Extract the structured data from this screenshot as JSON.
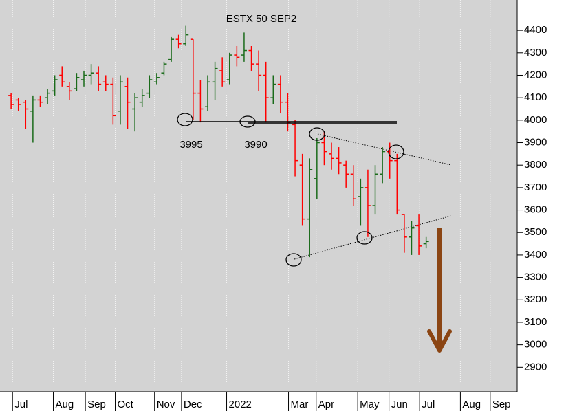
{
  "chart_data": {
    "type": "ohlc",
    "title": "ESTX 50 SEP2",
    "open": [
      4110,
      4090,
      4080,
      4040,
      4090,
      4100,
      4130,
      4200,
      4150,
      4140,
      4180,
      4200,
      4210,
      4170,
      4160,
      4040,
      4150,
      4050,
      4080,
      4120,
      4170,
      4210,
      4270,
      4360,
      4340,
      4360,
      4120,
      4060,
      4170,
      4220,
      4180,
      4290,
      4290,
      4310,
      4250,
      4200,
      4100,
      4160,
      4080,
      3980,
      3800,
      3560,
      3740,
      3900,
      3850,
      3830,
      3800,
      3760,
      3660,
      3700,
      3620,
      3760,
      3860,
      3820,
      3580,
      3480,
      3530,
      3450
    ],
    "high": [
      4120,
      4100,
      4090,
      4110,
      4110,
      4140,
      4200,
      4240,
      4170,
      4210,
      4220,
      4250,
      4240,
      4200,
      4190,
      4200,
      4190,
      4120,
      4140,
      4200,
      4210,
      4260,
      4370,
      4380,
      4420,
      4360,
      4180,
      4200,
      4260,
      4280,
      4300,
      4330,
      4390,
      4330,
      4310,
      4260,
      4200,
      4200,
      4120,
      4000,
      3850,
      3830,
      3920,
      3950,
      3900,
      3880,
      3820,
      3800,
      3740,
      3780,
      3800,
      3880,
      3900,
      3850,
      3580,
      3550,
      3580,
      3480
    ],
    "low": [
      4050,
      4040,
      3960,
      3900,
      4060,
      4070,
      4110,
      4150,
      4090,
      4130,
      4150,
      4160,
      4130,
      4130,
      3980,
      3980,
      3960,
      3950,
      4060,
      4100,
      4160,
      4200,
      4260,
      4320,
      4330,
      4000,
      3990,
      4040,
      4090,
      4150,
      4160,
      4240,
      4260,
      4220,
      4130,
      3990,
      4070,
      4030,
      3950,
      3750,
      3530,
      3390,
      3650,
      3800,
      3780,
      3760,
      3700,
      3620,
      3530,
      3480,
      3580,
      3720,
      3740,
      3580,
      3410,
      3400,
      3400,
      3430
    ],
    "close": [
      4070,
      4070,
      4050,
      4090,
      4080,
      4120,
      4180,
      4170,
      4130,
      4190,
      4200,
      4210,
      4160,
      4160,
      4020,
      4170,
      4080,
      4100,
      4110,
      4180,
      4190,
      4250,
      4360,
      4340,
      4380,
      4120,
      4050,
      4170,
      4230,
      4170,
      4290,
      4280,
      4310,
      4250,
      4200,
      4100,
      4160,
      4080,
      3990,
      3820,
      3560,
      3780,
      3900,
      3860,
      3830,
      3810,
      3760,
      3650,
      3700,
      3620,
      3760,
      3860,
      3820,
      3600,
      3480,
      3520,
      3440,
      3460
    ],
    "up_color": "#1a6b1a",
    "down_color": "#ff0000",
    "xlim": [
      -0.2,
      69.5
    ],
    "xticks": [
      {
        "value": 0.2,
        "label": "Jul"
      },
      {
        "value": 5.8,
        "label": "Aug"
      },
      {
        "value": 10.2,
        "label": "Sep"
      },
      {
        "value": 14.3,
        "label": "Oct"
      },
      {
        "value": 19.7,
        "label": "Nov"
      },
      {
        "value": 23.4,
        "label": "Dec"
      },
      {
        "value": 29.6,
        "label": "2022"
      },
      {
        "value": 38.1,
        "label": "Mar"
      },
      {
        "value": 41.9,
        "label": "Apr"
      },
      {
        "value": 47.6,
        "label": "May"
      },
      {
        "value": 51.9,
        "label": "Jun"
      },
      {
        "value": 56.1,
        "label": "Jul"
      },
      {
        "value": 61.7,
        "label": "Aug"
      },
      {
        "value": 65.8,
        "label": "Sep"
      }
    ],
    "ylim": [
      2800,
      4535
    ],
    "yticks": [
      2900,
      3000,
      3100,
      3200,
      3300,
      3400,
      3500,
      3600,
      3700,
      3800,
      3900,
      4000,
      4100,
      4200,
      4300,
      4400
    ],
    "grid": true,
    "annotations": [
      {
        "text": "3995"
      },
      {
        "text": "3990"
      }
    ]
  }
}
